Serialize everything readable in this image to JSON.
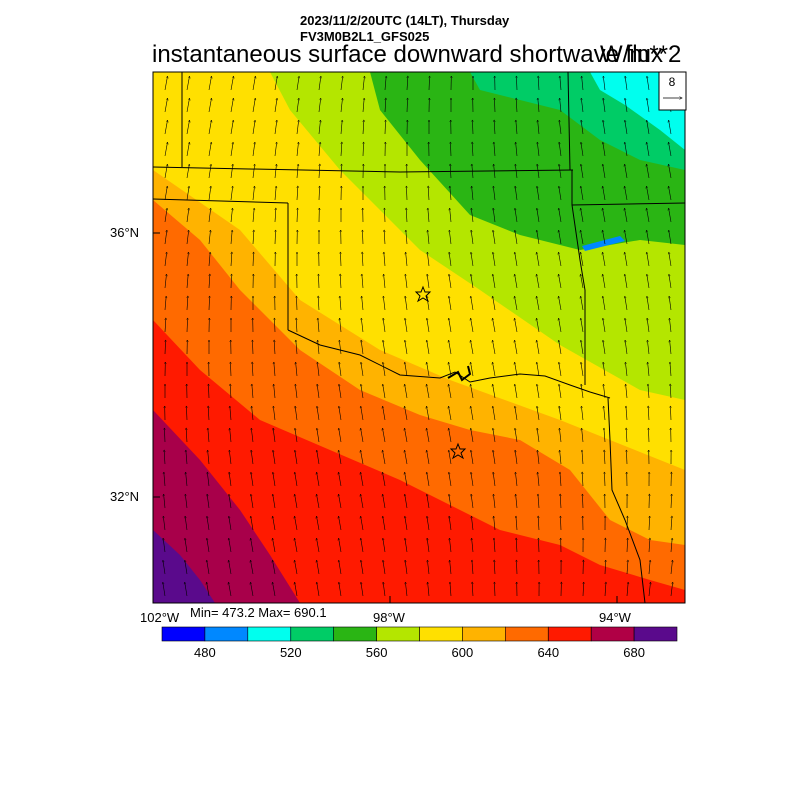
{
  "header": {
    "date_line": "2023/11/2/20UTC (14LT), Thursday",
    "model_line": "FV3M0B2L1_GFS025",
    "variable": "instantaneous surface downward shortwave flux",
    "units": "W/m**2"
  },
  "map": {
    "lat_labels": [
      "36°N",
      "32°N"
    ],
    "lon_labels": [
      "102°W",
      "98°W",
      "94°W"
    ],
    "min_max_text": "Min= 473.2 Max= 690.1",
    "shading_colors": [
      "#5a0a8c",
      "#a8004a",
      "#ff1a00",
      "#ff6a00",
      "#ffb300",
      "#ffe000",
      "#b4e600",
      "#2ab514",
      "#00cc66",
      "#00ffee",
      "#0088ff"
    ],
    "wind_arrow_color": "#000000",
    "border_color": "#000000",
    "city_markers": [
      "star-marker-oklahoma-city",
      "star-marker-dallas"
    ]
  },
  "reference_vector": {
    "label": "8"
  },
  "colorbar": {
    "colors": [
      "#0000ff",
      "#0088ff",
      "#00ffee",
      "#00cc66",
      "#2ab514",
      "#b4e600",
      "#ffe000",
      "#ffb300",
      "#ff6a00",
      "#ff1a00",
      "#b00045",
      "#5a0a8c"
    ],
    "labels": [
      "480",
      "520",
      "560",
      "600",
      "640",
      "680"
    ]
  }
}
